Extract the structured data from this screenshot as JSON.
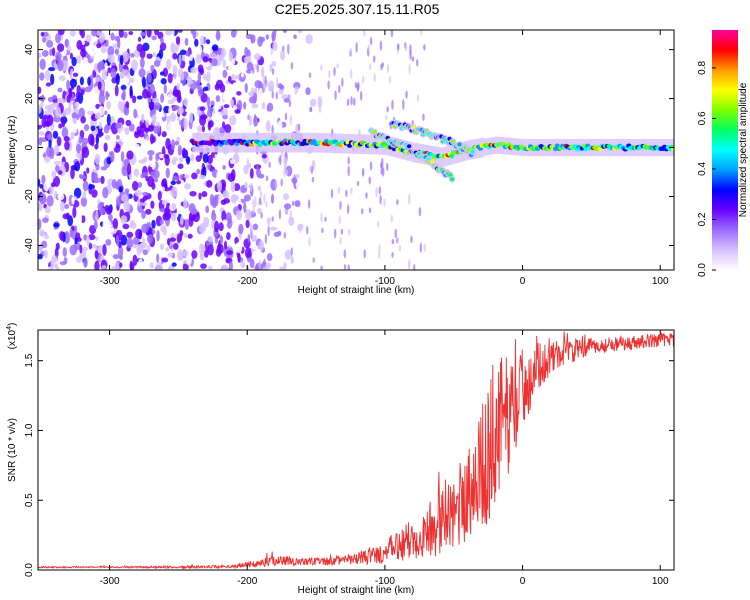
{
  "title": "C2E5.2025.307.15.11.R05",
  "chart_data": [
    {
      "type": "heatmap",
      "name": "spectrogram",
      "xlabel": "Height of straight line (km)",
      "ylabel": "Frequency (Hz)",
      "xlim": [
        -352,
        110
      ],
      "ylim": [
        -50,
        48
      ],
      "xticks": [
        -300,
        -200,
        -100,
        0,
        100
      ],
      "xtick_labels": [
        "-300",
        "-200",
        "-100",
        "0",
        "100"
      ],
      "yticks": [
        -40,
        -20,
        0,
        20,
        40
      ],
      "ytick_labels": [
        "-40",
        "-20",
        "0",
        "20",
        "40"
      ],
      "colorbar": {
        "label": "Normalized spectral amplitude",
        "range": [
          0,
          0.95
        ],
        "ticks": [
          0.0,
          0.2,
          0.4,
          0.6,
          0.8
        ],
        "tick_labels": [
          "0.0",
          "0.2",
          "0.4",
          "0.6",
          "0.8"
        ],
        "colors": [
          "#ffffff",
          "#d7c2ff",
          "#9b6cff",
          "#6a00ff",
          "#0000ff",
          "#00a0ff",
          "#00ffff",
          "#00ff60",
          "#80ff00",
          "#ffff00",
          "#ff9a00",
          "#ff0000",
          "#ff00a0"
        ]
      },
      "features": {
        "noise_region_x": [
          -352,
          -200
        ],
        "carrier_line": {
          "x": [
            -240,
            -150,
            -100,
            -80,
            -60,
            -40,
            -20,
            0,
            50,
            110
          ],
          "y": [
            2,
            2,
            1,
            -2,
            -4,
            -1,
            1,
            0,
            0,
            0
          ]
        },
        "upper_branch": {
          "x": [
            -95,
            -70,
            -50,
            -35
          ],
          "y": [
            10,
            6,
            2,
            -3
          ]
        },
        "lower_branch": {
          "x": [
            -110,
            -80,
            -60,
            -50
          ],
          "y": [
            6,
            -1,
            -9,
            -13
          ]
        }
      }
    },
    {
      "type": "line",
      "name": "snr",
      "xlabel": "Height of straight line (km)",
      "ylabel": "SNR (10 * v/v)",
      "scale_label": "(x10",
      "scale_exp": "4",
      "xlim": [
        -352,
        110
      ],
      "ylim": [
        0,
        1.72
      ],
      "xticks": [
        -300,
        -200,
        -100,
        0,
        100
      ],
      "xtick_labels": [
        "-300",
        "-200",
        "-100",
        "0",
        "100"
      ],
      "yticks": [
        0.0,
        0.5,
        1.0,
        1.5
      ],
      "ytick_labels": [
        "0.0",
        "0.5",
        "1.0",
        "1.5"
      ],
      "color": "#ee3030",
      "series": [
        {
          "x": [
            -352,
            -300,
            -250,
            -210,
            -190,
            -180,
            -160,
            -140,
            -120,
            -100,
            -90,
            -80,
            -70,
            -60,
            -50,
            -40,
            -30,
            -25,
            -20,
            -15,
            -10,
            -5,
            0,
            5,
            10,
            20,
            30,
            40,
            50,
            60,
            70,
            80,
            90,
            100,
            110
          ],
          "y": [
            0.02,
            0.02,
            0.02,
            0.025,
            0.05,
            0.07,
            0.06,
            0.06,
            0.08,
            0.12,
            0.18,
            0.22,
            0.26,
            0.32,
            0.42,
            0.55,
            0.72,
            0.82,
            0.95,
            1.05,
            1.12,
            1.2,
            1.3,
            1.38,
            1.45,
            1.52,
            1.56,
            1.58,
            1.6,
            1.61,
            1.62,
            1.63,
            1.64,
            1.65,
            1.65
          ],
          "spread": [
            0.005,
            0.005,
            0.008,
            0.01,
            0.03,
            0.04,
            0.03,
            0.03,
            0.04,
            0.08,
            0.12,
            0.15,
            0.18,
            0.22,
            0.28,
            0.35,
            0.45,
            0.5,
            0.55,
            0.5,
            0.42,
            0.35,
            0.3,
            0.25,
            0.18,
            0.12,
            0.1,
            0.08,
            0.06,
            0.05,
            0.05,
            0.05,
            0.05,
            0.05,
            0.05
          ]
        }
      ]
    }
  ]
}
